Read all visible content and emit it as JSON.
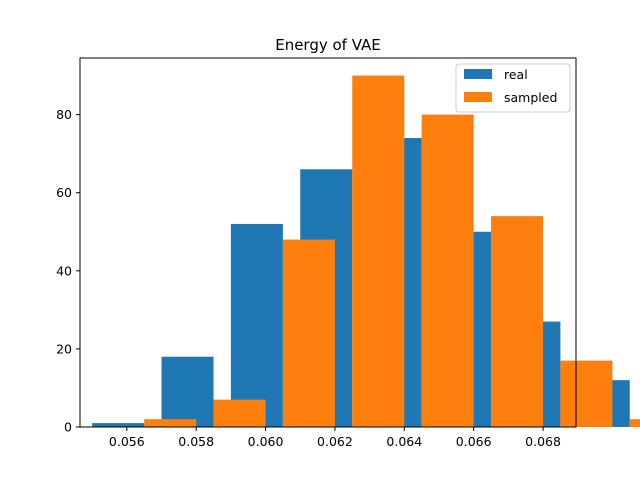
{
  "chart_data": {
    "type": "bar",
    "title": "Energy of VAE",
    "xlabel": "",
    "ylabel": "",
    "bin_centers": [
      0.0556,
      0.0576,
      0.0596,
      0.0616,
      0.0636,
      0.0656,
      0.0676,
      0.0696
    ],
    "bin_edges": [
      0.055,
      0.057,
      0.059,
      0.061,
      0.063,
      0.065,
      0.067,
      0.069
    ],
    "series": [
      {
        "name": "real",
        "color": "#1f77b4",
        "values": [
          1,
          18,
          52,
          66,
          74,
          50,
          27,
          12
        ]
      },
      {
        "name": "sampled",
        "color": "#ff7f0e",
        "values": [
          2,
          7,
          48,
          90,
          80,
          54,
          17,
          2
        ]
      }
    ],
    "xlim": [
      0.05465,
      0.06895
    ],
    "ylim": [
      0,
      94.5
    ],
    "xticks": [
      0.056,
      0.058,
      0.06,
      0.062,
      0.064,
      0.066,
      0.068
    ],
    "xtick_labels": [
      "0.056",
      "0.058",
      "0.060",
      "0.062",
      "0.064",
      "0.066",
      "0.068"
    ],
    "yticks": [
      0,
      20,
      40,
      60,
      80
    ],
    "ytick_labels": [
      "0",
      "20",
      "40",
      "60",
      "80"
    ],
    "bin_width": 0.0015,
    "legend_position": "top-right",
    "grid": false
  }
}
